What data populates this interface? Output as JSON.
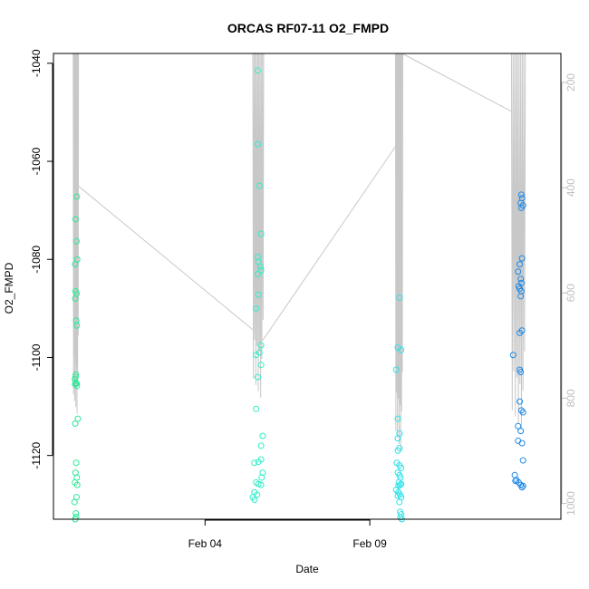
{
  "chart_data": {
    "type": "scatter",
    "title": "ORCAS RF07-11 O2_FMPD",
    "xlabel": "Date",
    "ylabel": "O2_FMPD",
    "x_ticks": [
      "Feb 04",
      "Feb 09"
    ],
    "left_axis": {
      "ylim": [
        -1133,
        -1038
      ],
      "ticks": [
        "-1040",
        "-1060",
        "-1080",
        "-1100",
        "-1120"
      ]
    },
    "right_axis": {
      "ylim": [
        145,
        1030
      ],
      "ticks": [
        "200",
        "400",
        "600",
        "800",
        "1000"
      ],
      "color": "#bfbfbf"
    },
    "grid": false,
    "legend": "none",
    "colors": {
      "line": "#c8c8c8",
      "frame": "#000000"
    },
    "flights": [
      {
        "color": "#2de897",
        "points": [
          [
            0.06,
            -1113.5
          ],
          [
            0.04,
            -1129.5
          ],
          [
            0.05,
            -1125.5
          ],
          [
            0.07,
            -1123.5
          ],
          [
            0.09,
            -1121.5
          ],
          [
            0.11,
            -1124.5
          ],
          [
            0.12,
            -1126
          ],
          [
            0.1,
            -1128.5
          ],
          [
            0.08,
            -1131.8
          ],
          [
            0.06,
            -1133
          ],
          [
            0.09,
            -1132.5
          ],
          [
            0.05,
            -1104.5
          ],
          [
            0.06,
            -1105.5
          ],
          [
            0.07,
            -1104
          ],
          [
            0.08,
            -1103.5
          ],
          [
            0.08,
            -1105.2
          ],
          [
            0.1,
            -1105.3
          ],
          [
            0.11,
            -1105.8
          ],
          [
            0.06,
            -1088
          ],
          [
            0.07,
            -1086.5
          ],
          [
            0.1,
            -1087
          ],
          [
            0.09,
            -1092.5
          ],
          [
            0.11,
            -1093.5
          ],
          [
            0.06,
            -1081
          ],
          [
            0.1,
            -1076.3
          ],
          [
            0.12,
            -1080
          ],
          [
            0.07,
            -1071.8
          ],
          [
            0.11,
            -1067.2
          ],
          [
            0.14,
            -1112.5
          ]
        ]
      },
      {
        "color": "#31eec7",
        "points": [
          [
            5.6,
            -1041.5
          ],
          [
            5.6,
            -1056.5
          ],
          [
            5.65,
            -1065
          ],
          [
            5.7,
            -1074.8
          ],
          [
            5.6,
            -1079.5
          ],
          [
            5.62,
            -1080.5
          ],
          [
            5.68,
            -1081.5
          ],
          [
            5.7,
            -1082.2
          ],
          [
            5.6,
            -1083
          ],
          [
            5.62,
            -1087.2
          ],
          [
            5.55,
            -1090
          ],
          [
            5.7,
            -1097.5
          ],
          [
            5.65,
            -1099
          ],
          [
            5.55,
            -1099.5
          ],
          [
            5.7,
            -1101.5
          ],
          [
            5.6,
            -1104
          ],
          [
            5.55,
            -1110.5
          ],
          [
            5.75,
            -1116
          ],
          [
            5.7,
            -1118
          ],
          [
            5.5,
            -1121.5
          ],
          [
            5.62,
            -1121.3
          ],
          [
            5.7,
            -1120.8
          ],
          [
            5.75,
            -1123.5
          ],
          [
            5.72,
            -1124.5
          ],
          [
            5.55,
            -1125.5
          ],
          [
            5.62,
            -1125.8
          ],
          [
            5.7,
            -1126
          ],
          [
            5.5,
            -1127.5
          ],
          [
            5.45,
            -1128.5
          ],
          [
            5.5,
            -1129
          ],
          [
            5.58,
            -1128
          ]
        ]
      },
      {
        "color": "#2ee1e8",
        "points": [
          [
            9.9,
            -1087.8
          ],
          [
            9.85,
            -1098
          ],
          [
            9.95,
            -1098.5
          ],
          [
            9.8,
            -1102.5
          ],
          [
            9.85,
            -1112.5
          ],
          [
            9.9,
            -1115.5
          ],
          [
            9.85,
            -1116.5
          ],
          [
            9.9,
            -1118.5
          ],
          [
            9.85,
            -1119
          ],
          [
            9.82,
            -1121.5
          ],
          [
            9.9,
            -1122
          ],
          [
            9.95,
            -1122.5
          ],
          [
            9.85,
            -1123.5
          ],
          [
            9.9,
            -1124
          ],
          [
            9.93,
            -1124.5
          ],
          [
            9.88,
            -1125.5
          ],
          [
            9.95,
            -1125.8
          ],
          [
            9.87,
            -1126.2
          ],
          [
            9.92,
            -1126
          ],
          [
            9.8,
            -1127
          ],
          [
            9.87,
            -1127.5
          ],
          [
            9.92,
            -1128
          ],
          [
            9.85,
            -1128.2
          ],
          [
            9.95,
            -1128.5
          ],
          [
            9.9,
            -1129.5
          ],
          [
            9.92,
            -1131.5
          ],
          [
            9.95,
            -1132
          ],
          [
            9.93,
            -1132.6
          ],
          [
            9.97,
            -1133
          ]
        ]
      },
      {
        "color": "#1e88e5",
        "points": [
          [
            13.6,
            -1066.8
          ],
          [
            13.62,
            -1067.5
          ],
          [
            13.58,
            -1068.5
          ],
          [
            13.65,
            -1069
          ],
          [
            13.6,
            -1069.5
          ],
          [
            13.62,
            -1079.8
          ],
          [
            13.55,
            -1081
          ],
          [
            13.5,
            -1082.5
          ],
          [
            13.58,
            -1084
          ],
          [
            13.6,
            -1084.8
          ],
          [
            13.52,
            -1085.5
          ],
          [
            13.55,
            -1086
          ],
          [
            13.6,
            -1086.5
          ],
          [
            13.58,
            -1087.5
          ],
          [
            13.62,
            -1094.5
          ],
          [
            13.55,
            -1095
          ],
          [
            13.35,
            -1099.5
          ],
          [
            13.55,
            -1102.5
          ],
          [
            13.58,
            -1103
          ],
          [
            13.55,
            -1109
          ],
          [
            13.6,
            -1110.8
          ],
          [
            13.65,
            -1111.2
          ],
          [
            13.5,
            -1114
          ],
          [
            13.58,
            -1115
          ],
          [
            13.5,
            -1117
          ],
          [
            13.62,
            -1117.5
          ],
          [
            13.65,
            -1121
          ],
          [
            13.4,
            -1124
          ],
          [
            13.45,
            -1125
          ],
          [
            13.42,
            -1125.2
          ],
          [
            13.52,
            -1125.5
          ],
          [
            13.58,
            -1126
          ],
          [
            13.62,
            -1126.5
          ],
          [
            13.65,
            -1126.2
          ]
        ]
      }
    ]
  }
}
